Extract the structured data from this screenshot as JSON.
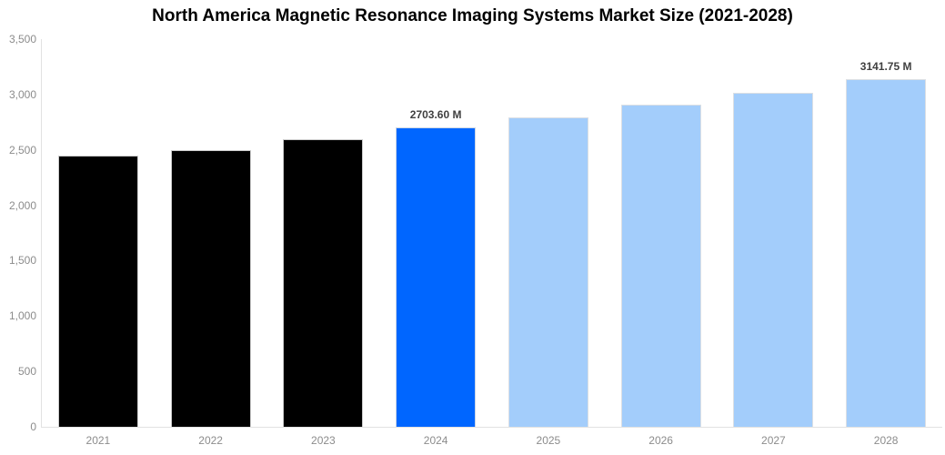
{
  "chart_data": {
    "type": "bar",
    "title": "North America Magnetic Resonance Imaging Systems Market Size (2021-2028)",
    "xlabel": "",
    "ylabel": "",
    "categories": [
      "2021",
      "2022",
      "2023",
      "2024",
      "2025",
      "2026",
      "2027",
      "2028"
    ],
    "values": [
      2450,
      2500,
      2595,
      2703.6,
      2795,
      2905,
      3015,
      3141.75
    ],
    "unit": "M",
    "ylim": [
      0,
      3500
    ],
    "ytick_step": 500,
    "ytick_labels": [
      "0",
      "500",
      "1,000",
      "1,500",
      "2,000",
      "2,500",
      "3,000",
      "3,500"
    ],
    "data_labels": [
      "",
      "",
      "",
      "2703.60 M",
      "",
      "",
      "",
      "3141.75 M"
    ],
    "bar_colors": [
      "#000000",
      "#000000",
      "#000000",
      "#0066ff",
      "#a3cdfb",
      "#a3cdfb",
      "#a3cdfb",
      "#a3cdfb"
    ],
    "grid": false,
    "legend": "none"
  },
  "colors": {
    "historical_bar": "#000000",
    "highlight_bar": "#0066ff",
    "forecast_bar": "#a3cdfb",
    "axis_line": "#e2e2e2",
    "tick_text": "#8c8c8c",
    "data_label_text": "#3f3f3f",
    "title_text": "#000000",
    "background": "#ffffff"
  }
}
